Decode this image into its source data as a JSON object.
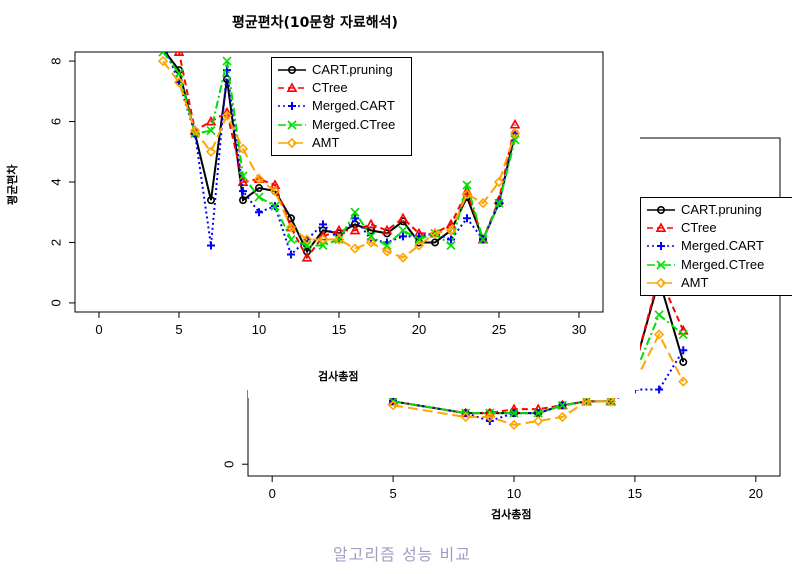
{
  "chart_data": [
    {
      "type": "line",
      "title": "평균편차(10문항 자료해석)",
      "xlabel": "검사총점",
      "ylabel": "평균편차",
      "xlim": [
        -1.5,
        31.5
      ],
      "ylim": [
        -0.3,
        8.3
      ],
      "xticks": [
        0,
        5,
        10,
        15,
        20,
        25,
        30
      ],
      "yticks": [
        0,
        2,
        4,
        6,
        8
      ],
      "legend_position": "top-center",
      "x": [
        4,
        5,
        6,
        7,
        8,
        9,
        10,
        11,
        12,
        13,
        14,
        15,
        16,
        17,
        18,
        19,
        20,
        21,
        22,
        23,
        24,
        25,
        26
      ],
      "series": [
        {
          "name": "CART.pruning",
          "color": "#000000",
          "dash": "",
          "marker": "circle",
          "values": [
            8.4,
            7.7,
            5.6,
            3.4,
            7.4,
            3.4,
            3.8,
            3.7,
            2.8,
            1.7,
            2.4,
            2.3,
            2.6,
            2.4,
            2.3,
            2.7,
            2.0,
            2.0,
            2.4,
            3.5,
            2.1,
            3.3,
            5.6
          ]
        },
        {
          "name": "CTree",
          "color": "#ff0000",
          "dash": "6,4",
          "marker": "triangle",
          "values": [
            8.8,
            8.3,
            5.7,
            6.0,
            6.3,
            4.0,
            4.1,
            3.9,
            2.5,
            1.5,
            2.2,
            2.4,
            2.4,
            2.6,
            2.4,
            2.8,
            2.3,
            2.3,
            2.6,
            3.7,
            2.1,
            3.4,
            5.9
          ]
        },
        {
          "name": "Merged.CART",
          "color": "#0000ff",
          "dash": "2,3",
          "marker": "plus",
          "values": [
            8.6,
            7.3,
            5.6,
            1.9,
            7.7,
            3.7,
            3.0,
            3.2,
            1.6,
            2.1,
            2.6,
            2.1,
            2.8,
            2.1,
            2.0,
            2.2,
            2.2,
            2.3,
            2.1,
            2.8,
            2.1,
            3.3,
            5.6
          ]
        },
        {
          "name": "Merged.CTree",
          "color": "#00dd00",
          "dash": "8,3,2,3",
          "marker": "x",
          "values": [
            8.3,
            7.6,
            5.6,
            5.7,
            8.0,
            4.2,
            3.5,
            3.2,
            2.1,
            1.9,
            1.9,
            2.1,
            3.0,
            2.2,
            1.9,
            2.4,
            2.1,
            2.3,
            1.9,
            3.9,
            2.1,
            3.3,
            5.4
          ]
        },
        {
          "name": "AMT",
          "color": "#ffa500",
          "dash": "10,5",
          "marker": "diamond",
          "values": [
            8.0,
            7.3,
            5.7,
            5.0,
            6.2,
            5.1,
            4.1,
            3.7,
            2.5,
            2.1,
            2.1,
            2.1,
            1.8,
            2.0,
            1.7,
            1.5,
            1.9,
            2.3,
            2.4,
            3.6,
            3.3,
            4.0,
            5.6
          ]
        }
      ]
    },
    {
      "type": "line",
      "title": "",
      "xlabel": "검사총점",
      "ylabel": "",
      "xlim": [
        -1,
        21
      ],
      "ylim": [
        -0.3,
        8.3
      ],
      "xticks": [
        0,
        5,
        10,
        15,
        20
      ],
      "yticks": [
        0
      ],
      "legend_position": "top-right",
      "x": [
        5,
        8,
        9,
        10,
        11,
        12,
        13,
        14,
        15,
        16,
        17
      ],
      "series": [
        {
          "name": "CART.pruning",
          "color": "#000000",
          "dash": "",
          "marker": "circle",
          "values": [
            1.6,
            1.3,
            1.3,
            1.3,
            1.3,
            1.5,
            1.6,
            1.6,
            2.5,
            4.7,
            2.6
          ]
        },
        {
          "name": "CTree",
          "color": "#ff0000",
          "dash": "6,4",
          "marker": "triangle",
          "values": [
            1.6,
            1.3,
            1.3,
            1.4,
            1.4,
            1.5,
            1.6,
            1.6,
            2.5,
            4.8,
            3.4
          ]
        },
        {
          "name": "Merged.CART",
          "color": "#0000ff",
          "dash": "2,3",
          "marker": "plus",
          "values": [
            1.6,
            1.3,
            1.1,
            1.3,
            1.3,
            1.5,
            1.6,
            1.6,
            1.9,
            1.9,
            2.9
          ]
        },
        {
          "name": "Merged.CTree",
          "color": "#00dd00",
          "dash": "8,3,2,3",
          "marker": "x",
          "values": [
            1.6,
            1.3,
            1.3,
            1.3,
            1.3,
            1.5,
            1.6,
            1.6,
            2.3,
            3.8,
            3.3
          ]
        },
        {
          "name": "AMT",
          "color": "#ffa500",
          "dash": "10,5",
          "marker": "diamond",
          "values": [
            1.5,
            1.2,
            1.2,
            1.0,
            1.1,
            1.2,
            1.6,
            1.6,
            2.1,
            3.3,
            2.1
          ]
        }
      ]
    }
  ],
  "caption": "알고리즘 성능 비교"
}
